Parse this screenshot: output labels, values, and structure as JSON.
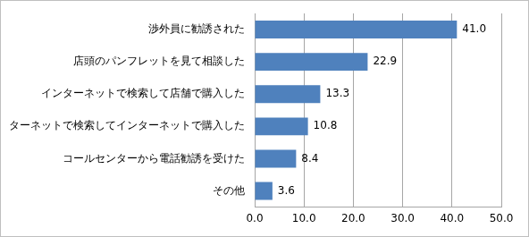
{
  "chart_data": {
    "type": "bar",
    "orientation": "horizontal",
    "categories": [
      "渉外員に勧誘された",
      "店頭のパンフレットを見て相談した",
      "インターネットで検索して店舗で購入した",
      "インターネットで検索してインターネットで購入した",
      "コールセンターから電話勧誘を受けた",
      "その他"
    ],
    "values": [
      41.0,
      22.9,
      13.3,
      10.8,
      8.4,
      3.6
    ],
    "value_labels": [
      "41.0",
      "22.9",
      "13.3",
      "10.8",
      "8.4",
      "3.6"
    ],
    "color": "#4f81bd",
    "xlim": [
      0,
      50
    ],
    "xticks": [
      {
        "value": 0,
        "label": "0.0"
      },
      {
        "value": 10,
        "label": "10.0"
      },
      {
        "value": 20,
        "label": "20.0"
      },
      {
        "value": 30,
        "label": "30.0"
      },
      {
        "value": 40,
        "label": "40.0"
      },
      {
        "value": 50,
        "label": "50.0"
      }
    ],
    "grid": true,
    "data_labels": true
  }
}
